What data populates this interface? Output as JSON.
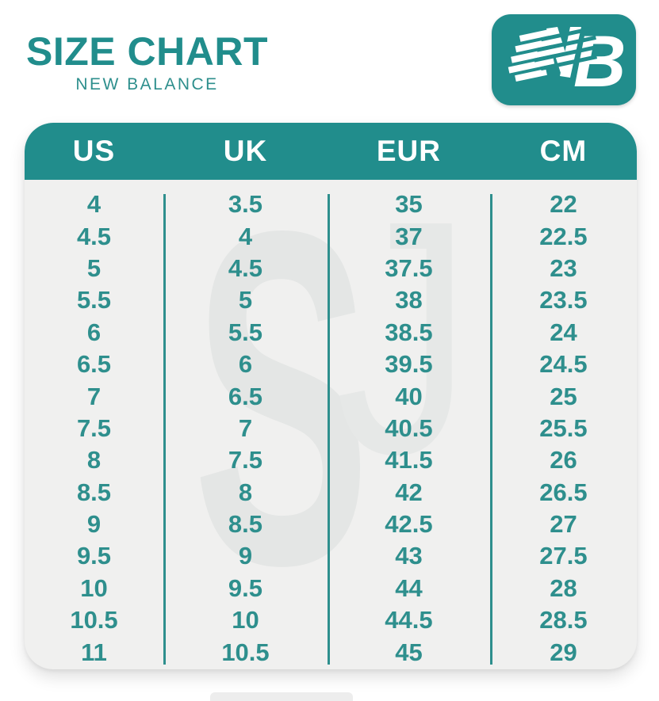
{
  "header": {
    "title": "SIZE CHART",
    "subtitle": "NEW BALANCE",
    "logo_monogram": "NB"
  },
  "icons": {
    "logo": "new-balance-nb-logo"
  },
  "colors": {
    "teal": "#218d8c",
    "number_text": "#2e8f8d",
    "header_text": "#ffffff",
    "table_background": "#f0f0ef",
    "watermark_gray": "#e4e6e5",
    "page_background": "#ffffff"
  },
  "watermark": {
    "letter_1": "S",
    "letter_2": "J"
  },
  "chart_data": {
    "type": "table",
    "title": "SIZE CHART",
    "subtitle": "NEW BALANCE",
    "columns": [
      "US",
      "UK",
      "EUR",
      "CM"
    ],
    "rows": [
      [
        "4",
        "3.5",
        "35",
        "22"
      ],
      [
        "4.5",
        "4",
        "37",
        "22.5"
      ],
      [
        "5",
        "4.5",
        "37.5",
        "23"
      ],
      [
        "5.5",
        "5",
        "38",
        "23.5"
      ],
      [
        "6",
        "5.5",
        "38.5",
        "24"
      ],
      [
        "6.5",
        "6",
        "39.5",
        "24.5"
      ],
      [
        "7",
        "6.5",
        "40",
        "25"
      ],
      [
        "7.5",
        "7",
        "40.5",
        "25.5"
      ],
      [
        "8",
        "7.5",
        "41.5",
        "26"
      ],
      [
        "8.5",
        "8",
        "42",
        "26.5"
      ],
      [
        "9",
        "8.5",
        "42.5",
        "27"
      ],
      [
        "9.5",
        "9",
        "43",
        "27.5"
      ],
      [
        "10",
        "9.5",
        "44",
        "28"
      ],
      [
        "10.5",
        "10",
        "44.5",
        "28.5"
      ],
      [
        "11",
        "10.5",
        "45",
        "29"
      ]
    ],
    "legend": false,
    "grid": false
  }
}
